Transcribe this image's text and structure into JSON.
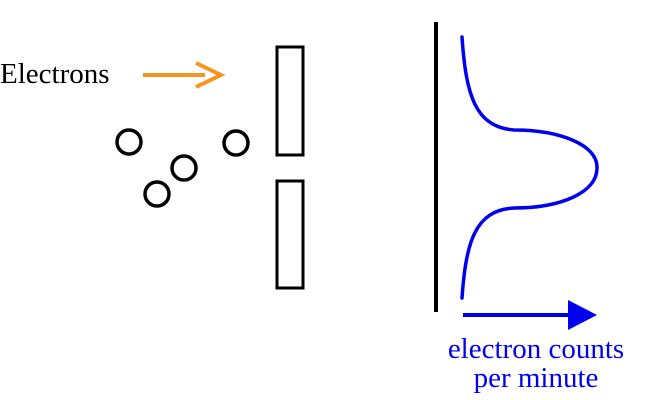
{
  "labels": {
    "source": "Electrons",
    "axis_line1": "electron counts",
    "axis_line2": "per minute"
  },
  "particles": {
    "count": 4,
    "shape": "circle"
  },
  "barrier": {
    "slits": 1,
    "shape": "rectangle"
  },
  "distribution": {
    "shape": "single-peak",
    "peak_position": "center"
  },
  "colors": {
    "source_arrow": "#f7931e",
    "curve": "#0000ee",
    "ink": "#000000",
    "background": "#ffffff"
  }
}
